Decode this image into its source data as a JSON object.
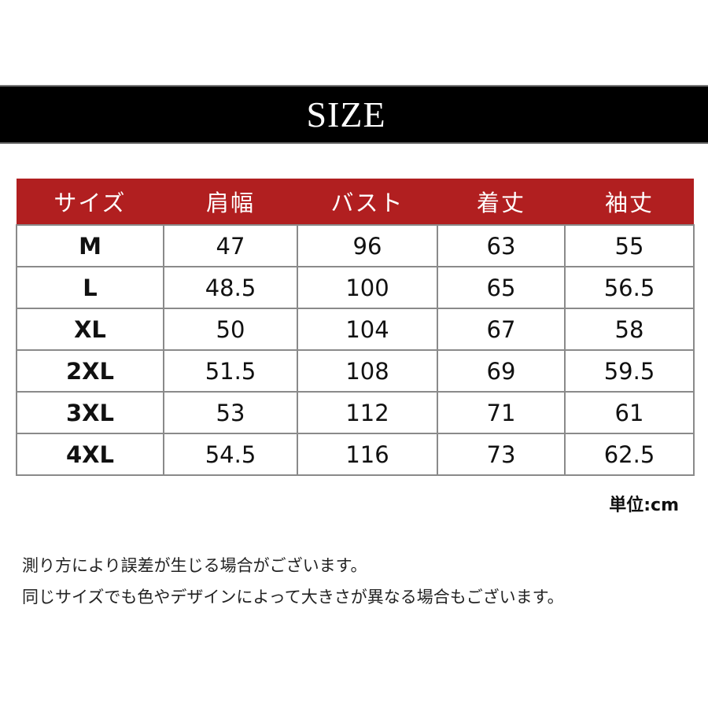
{
  "title": "SIZE",
  "table": {
    "headers": [
      "サイズ",
      "肩幅",
      "バスト",
      "着丈",
      "袖丈"
    ],
    "rows": [
      [
        "M",
        "47",
        "96",
        "63",
        "55"
      ],
      [
        "L",
        "48.5",
        "100",
        "65",
        "56.5"
      ],
      [
        "XL",
        "50",
        "104",
        "67",
        "58"
      ],
      [
        "2XL",
        "51.5",
        "108",
        "69",
        "59.5"
      ],
      [
        "3XL",
        "53",
        "112",
        "71",
        "61"
      ],
      [
        "4XL",
        "54.5",
        "116",
        "73",
        "62.5"
      ]
    ]
  },
  "unit": "単位:cm",
  "notes": [
    "測り方により誤差が生じる場合がございます。",
    "同じサイズでも色やデザインによって大きさが異なる場合もございます。"
  ],
  "colors": {
    "header_bg": "#b11f20",
    "banner_bg": "#000000"
  }
}
